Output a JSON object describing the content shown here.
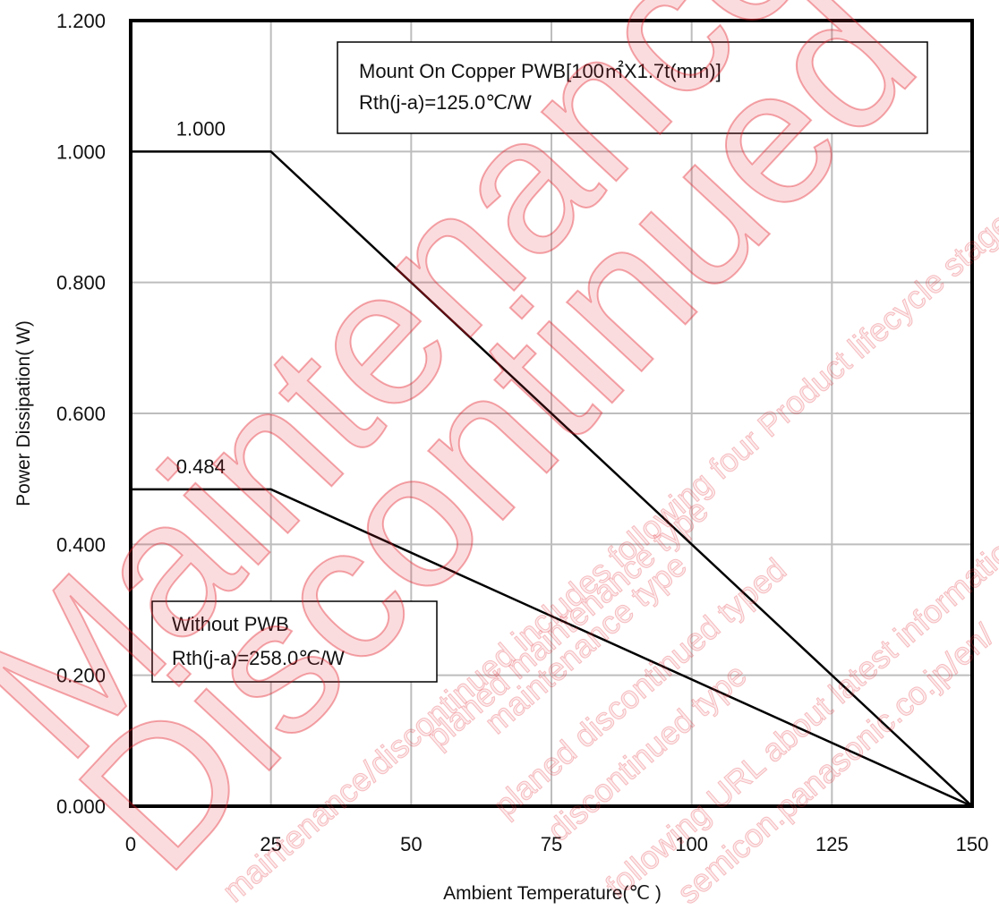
{
  "chart_data": {
    "type": "line",
    "title": "",
    "xlabel": "Ambient Temperature(℃ )",
    "ylabel": "Power Dissipation( W)",
    "xlim": [
      0,
      150
    ],
    "ylim": [
      0,
      1.2
    ],
    "x_ticks": [
      "0",
      "25",
      "50",
      "75",
      "100",
      "125",
      "150"
    ],
    "y_ticks": [
      "0.000",
      "0.200",
      "0.400",
      "0.600",
      "0.800",
      "1.000",
      "1.200"
    ],
    "grid": true,
    "series": [
      {
        "x": [
          0,
          25,
          150
        ],
        "y": [
          1.0,
          1.0,
          0.0
        ],
        "point_label": "1.000"
      },
      {
        "x": [
          0,
          25,
          150
        ],
        "y": [
          0.484,
          0.484,
          0.0
        ],
        "point_label": "0.484"
      }
    ],
    "annotations": [
      {
        "lines": [
          "Mount On Copper PWB[100㎡X1.7t(mm)]",
          "Rth(j-a)=125.0℃/W"
        ]
      },
      {
        "lines": [
          "Without PWB",
          "Rth(j-a)=258.0℃/W"
        ]
      }
    ]
  },
  "watermark": {
    "large": [
      "Maintenance",
      "Discontinued"
    ],
    "small": [
      "maintenance/discontinued includes following four Product lifecycle stage.",
      "planed maintenance type",
      "maintenance type",
      "planed discontinued typed",
      "discontinued type",
      "following URL about latest information.",
      "semicon.panasonic.co.jp/en/"
    ],
    "color": "#e53640"
  }
}
